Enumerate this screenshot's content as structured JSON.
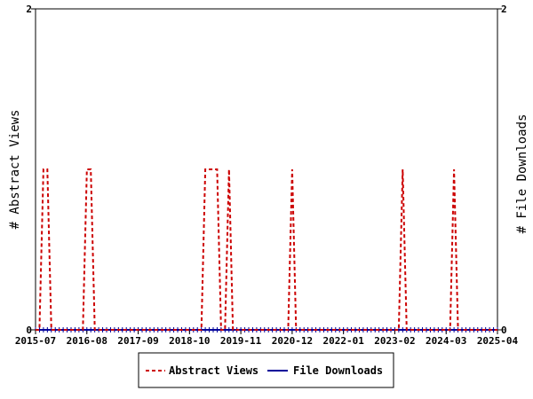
{
  "chart_data": {
    "type": "line",
    "title": "",
    "ylabel_left": "# Abstract Views",
    "ylabel_right": "# File Downloads",
    "ylim": [
      0,
      2
    ],
    "y_ticks_left": [
      "0",
      "2"
    ],
    "y_ticks_right": [
      "0",
      "2"
    ],
    "x_tick_labels": [
      "2015-07",
      "2016-08",
      "2017-09",
      "2018-10",
      "2019-11",
      "2020-12",
      "2022-01",
      "2023-02",
      "2024-03",
      "2025-04"
    ],
    "x_range": [
      "2015-07",
      "2025-04"
    ],
    "legend_position": "bottom",
    "series": [
      {
        "name": "Abstract Views",
        "color": "#cc0000",
        "style": "dashed",
        "points": [
          [
            "2015-07",
            0
          ],
          [
            "2015-08",
            0
          ],
          [
            "2015-09",
            1
          ],
          [
            "2015-10",
            1
          ],
          [
            "2015-11",
            0
          ],
          [
            "2015-12",
            0
          ],
          [
            "2016-07",
            0
          ],
          [
            "2016-08",
            1
          ],
          [
            "2016-09",
            1
          ],
          [
            "2016-10",
            0
          ],
          [
            "2016-11",
            0
          ],
          [
            "2019-01",
            0
          ],
          [
            "2019-02",
            1
          ],
          [
            "2019-03",
            1
          ],
          [
            "2019-04",
            1
          ],
          [
            "2019-05",
            1
          ],
          [
            "2019-06",
            0
          ],
          [
            "2019-07",
            0
          ],
          [
            "2019-08",
            1
          ],
          [
            "2019-09",
            0
          ],
          [
            "2020-11",
            0
          ],
          [
            "2020-12",
            1
          ],
          [
            "2021-01",
            0
          ],
          [
            "2023-03",
            0
          ],
          [
            "2023-04",
            1
          ],
          [
            "2023-05",
            0
          ],
          [
            "2024-04",
            0
          ],
          [
            "2024-05",
            1
          ],
          [
            "2024-06",
            0
          ],
          [
            "2025-04",
            0
          ]
        ]
      },
      {
        "name": "File Downloads",
        "color": "#000099",
        "style": "solid",
        "points": [
          [
            "2015-07",
            0
          ],
          [
            "2025-04",
            0
          ]
        ]
      }
    ]
  },
  "legend": {
    "abstract_label": "Abstract Views",
    "downloads_label": "File Downloads"
  }
}
